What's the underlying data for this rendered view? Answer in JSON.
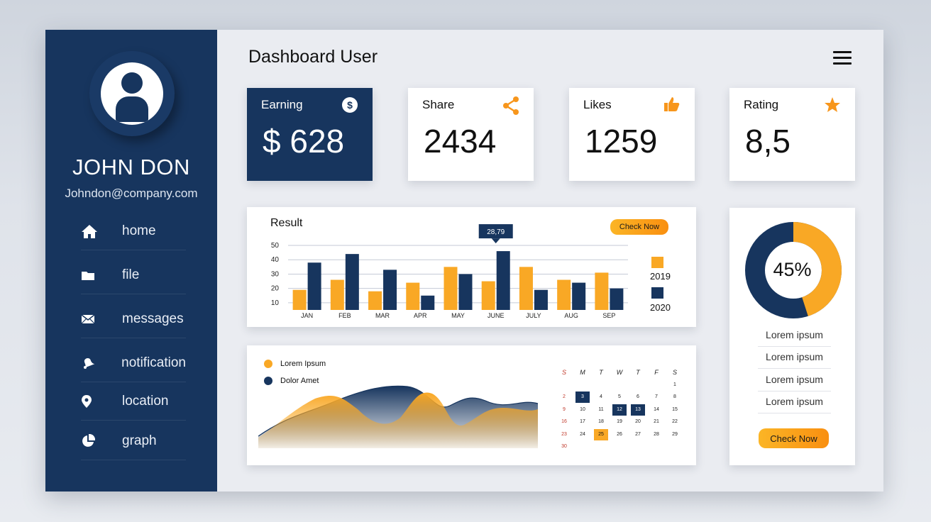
{
  "page": {
    "title": "Dashboard User"
  },
  "user": {
    "name": "JOHN DON",
    "email": "Johndon@company.com"
  },
  "nav": [
    {
      "label": "home",
      "icon": "home-icon"
    },
    {
      "label": "file",
      "icon": "folder-icon"
    },
    {
      "label": "messages",
      "icon": "envelope-icon"
    },
    {
      "label": "notification",
      "icon": "bell-icon"
    },
    {
      "label": "location",
      "icon": "location-pin-icon"
    },
    {
      "label": "graph",
      "icon": "pie-chart-icon"
    }
  ],
  "stats": {
    "earning": {
      "label": "Earning",
      "value": "$ 628",
      "icon": "dollar-icon"
    },
    "share": {
      "label": "Share",
      "value": "2434",
      "icon": "share-icon"
    },
    "likes": {
      "label": "Likes",
      "value": "1259",
      "icon": "thumbs-up-icon"
    },
    "rating": {
      "label": "Rating",
      "value": "8,5",
      "icon": "star-icon"
    }
  },
  "colors": {
    "navy": "#17355e",
    "orange": "#f9a825",
    "background": "#eaecf1"
  },
  "result": {
    "title": "Result",
    "check_now": "Check Now",
    "tooltip": "28,79"
  },
  "chart_data": {
    "type": "bar",
    "categories": [
      "JAN",
      "FEB",
      "MAR",
      "APR",
      "MAY",
      "JUNE",
      "JULY",
      "AUG",
      "SEP"
    ],
    "series": [
      {
        "name": "2019",
        "color": "#f9a825",
        "values": [
          19,
          26,
          18,
          24,
          35,
          25,
          35,
          26,
          31
        ]
      },
      {
        "name": "2020",
        "color": "#17355e",
        "values": [
          38,
          44,
          33,
          15,
          30,
          46,
          19,
          24,
          20
        ]
      }
    ],
    "y_ticks": [
      10,
      20,
      30,
      40,
      50
    ],
    "ylim": [
      5,
      50
    ],
    "grid": true,
    "legend": "right",
    "annotation": {
      "category": "JUNE",
      "text": "28,79"
    }
  },
  "area_legend": [
    {
      "label": "Lorem Ipsum",
      "color": "#f9a825"
    },
    {
      "label": "Dolor Amet",
      "color": "#17355e"
    }
  ],
  "calendar": {
    "days": [
      "S",
      "M",
      "T",
      "W",
      "T",
      "F",
      "S"
    ],
    "weeks": [
      [
        "",
        "",
        "",
        "",
        "",
        "",
        "1"
      ],
      [
        "2",
        "3",
        "4",
        "5",
        "6",
        "7",
        "8"
      ],
      [
        "9",
        "10",
        "11",
        "12",
        "13",
        "14",
        "15"
      ],
      [
        "16",
        "17",
        "18",
        "19",
        "20",
        "21",
        "22"
      ],
      [
        "23",
        "24",
        "25",
        "26",
        "27",
        "28",
        "29"
      ],
      [
        "30",
        "",
        "",
        "",
        "",
        "",
        ""
      ]
    ],
    "highlighted_navy": [
      "3",
      "12",
      "13"
    ],
    "highlighted_orange": [
      "25"
    ]
  },
  "progress": {
    "percent": 45,
    "label": "45%"
  },
  "lorem_list": [
    "Lorem ipsum",
    "Lorem ipsum",
    "Lorem ipsum",
    "Lorem ipsum"
  ],
  "side_check_now": "Check Now"
}
